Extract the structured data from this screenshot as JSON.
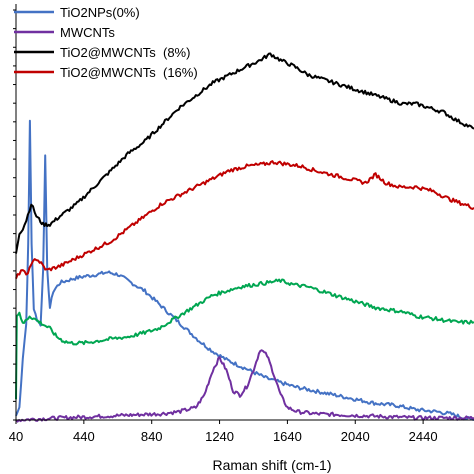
{
  "chart_data": {
    "type": "line",
    "title": "",
    "xlabel": "Raman shift (cm-1)",
    "ylabel": "",
    "xlim": [
      40,
      2740
    ],
    "ylim": [
      0,
      100
    ],
    "x_ticks": [
      40,
      440,
      840,
      1240,
      1640,
      2040,
      2440
    ],
    "y_ticks": [],
    "grid": false,
    "legend_position": "top-left",
    "series": [
      {
        "name": "TiO2NPs(0%)",
        "color": "#4472C4",
        "points": [
          [
            40,
            1
          ],
          [
            60,
            3
          ],
          [
            80,
            15
          ],
          [
            100,
            23
          ],
          [
            112,
            42
          ],
          [
            122,
            72
          ],
          [
            132,
            42
          ],
          [
            145,
            27
          ],
          [
            165,
            24
          ],
          [
            185,
            23
          ],
          [
            200,
            36
          ],
          [
            212,
            64
          ],
          [
            224,
            36
          ],
          [
            240,
            27
          ],
          [
            260,
            31
          ],
          [
            300,
            33
          ],
          [
            380,
            34
          ],
          [
            440,
            34.5
          ],
          [
            520,
            35
          ],
          [
            580,
            35.5
          ],
          [
            640,
            35
          ],
          [
            720,
            33
          ],
          [
            800,
            31
          ],
          [
            880,
            28
          ],
          [
            960,
            25
          ],
          [
            1040,
            22
          ],
          [
            1120,
            19
          ],
          [
            1200,
            16.5
          ],
          [
            1280,
            14.5
          ],
          [
            1360,
            13
          ],
          [
            1440,
            11.5
          ],
          [
            1520,
            10
          ],
          [
            1600,
            9
          ],
          [
            1680,
            8
          ],
          [
            1800,
            7
          ],
          [
            1920,
            6
          ],
          [
            2040,
            5
          ],
          [
            2160,
            4
          ],
          [
            2280,
            3.5
          ],
          [
            2400,
            2.5
          ],
          [
            2520,
            2
          ],
          [
            2600,
            1.5
          ],
          [
            2680,
            0.5
          ],
          [
            2740,
            0
          ]
        ]
      },
      {
        "name": "MWCNTs",
        "color": "#7030A0",
        "points": [
          [
            40,
            0
          ],
          [
            300,
            0.5
          ],
          [
            600,
            1
          ],
          [
            900,
            1.5
          ],
          [
            1000,
            2
          ],
          [
            1100,
            3
          ],
          [
            1150,
            6
          ],
          [
            1200,
            12
          ],
          [
            1240,
            15
          ],
          [
            1280,
            12
          ],
          [
            1320,
            7
          ],
          [
            1360,
            6
          ],
          [
            1400,
            8
          ],
          [
            1440,
            12
          ],
          [
            1480,
            17
          ],
          [
            1520,
            15.5
          ],
          [
            1560,
            11
          ],
          [
            1600,
            6
          ],
          [
            1640,
            3
          ],
          [
            1700,
            2
          ],
          [
            1800,
            1.5
          ],
          [
            2100,
            1
          ],
          [
            2400,
            0.5
          ],
          [
            2740,
            0.5
          ]
        ]
      },
      {
        "name": "TiO2@MWCNTs  (8%)",
        "color": "#000000",
        "points": [
          [
            40,
            40
          ],
          [
            60,
            45
          ],
          [
            80,
            46
          ],
          [
            100,
            48
          ],
          [
            130,
            52
          ],
          [
            160,
            49
          ],
          [
            200,
            47
          ],
          [
            240,
            47
          ],
          [
            300,
            49
          ],
          [
            400,
            52
          ],
          [
            500,
            56
          ],
          [
            600,
            60
          ],
          [
            700,
            64
          ],
          [
            800,
            67
          ],
          [
            900,
            71
          ],
          [
            1000,
            75
          ],
          [
            1100,
            78
          ],
          [
            1200,
            81
          ],
          [
            1300,
            83
          ],
          [
            1400,
            85
          ],
          [
            1480,
            86.5
          ],
          [
            1540,
            88
          ],
          [
            1600,
            86.5
          ],
          [
            1680,
            85
          ],
          [
            1760,
            83
          ],
          [
            1840,
            82
          ],
          [
            1920,
            81
          ],
          [
            2000,
            80
          ],
          [
            2080,
            79
          ],
          [
            2160,
            78
          ],
          [
            2240,
            77
          ],
          [
            2320,
            76
          ],
          [
            2400,
            76
          ],
          [
            2480,
            75
          ],
          [
            2560,
            74
          ],
          [
            2640,
            72
          ],
          [
            2740,
            70
          ]
        ]
      },
      {
        "name": "TiO2@MWCNTs  (16%)",
        "color": "#C00000",
        "points": [
          [
            40,
            34
          ],
          [
            70,
            36
          ],
          [
            100,
            35
          ],
          [
            130,
            37
          ],
          [
            150,
            39
          ],
          [
            180,
            38
          ],
          [
            220,
            36
          ],
          [
            300,
            37
          ],
          [
            400,
            39
          ],
          [
            500,
            41
          ],
          [
            600,
            43
          ],
          [
            700,
            46
          ],
          [
            800,
            49
          ],
          [
            900,
            52
          ],
          [
            1000,
            54
          ],
          [
            1100,
            56
          ],
          [
            1200,
            58
          ],
          [
            1300,
            60
          ],
          [
            1400,
            61
          ],
          [
            1500,
            61.5
          ],
          [
            1560,
            62
          ],
          [
            1640,
            61.5
          ],
          [
            1720,
            61
          ],
          [
            1800,
            60
          ],
          [
            1900,
            59
          ],
          [
            2000,
            58
          ],
          [
            2100,
            57
          ],
          [
            2160,
            59
          ],
          [
            2220,
            57
          ],
          [
            2300,
            56
          ],
          [
            2400,
            56
          ],
          [
            2500,
            55
          ],
          [
            2600,
            53
          ],
          [
            2740,
            51
          ]
        ]
      },
      {
        "name": "",
        "color": "#00A651",
        "points": [
          [
            40,
            5
          ],
          [
            45,
            25
          ],
          [
            60,
            26
          ],
          [
            80,
            23
          ],
          [
            120,
            25
          ],
          [
            160,
            24
          ],
          [
            200,
            23
          ],
          [
            240,
            22
          ],
          [
            280,
            20
          ],
          [
            320,
            19
          ],
          [
            360,
            18.5
          ],
          [
            440,
            18.5
          ],
          [
            520,
            19
          ],
          [
            600,
            19.5
          ],
          [
            700,
            20
          ],
          [
            800,
            21
          ],
          [
            880,
            22
          ],
          [
            960,
            24
          ],
          [
            1040,
            26
          ],
          [
            1120,
            28
          ],
          [
            1200,
            30
          ],
          [
            1280,
            31
          ],
          [
            1360,
            32
          ],
          [
            1440,
            32.5
          ],
          [
            1520,
            33
          ],
          [
            1600,
            33.5
          ],
          [
            1680,
            32.5
          ],
          [
            1760,
            32
          ],
          [
            1840,
            31
          ],
          [
            1920,
            30
          ],
          [
            2000,
            29
          ],
          [
            2080,
            28
          ],
          [
            2160,
            27
          ],
          [
            2240,
            26.5
          ],
          [
            2320,
            26
          ],
          [
            2400,
            25
          ],
          [
            2480,
            24.5
          ],
          [
            2560,
            24
          ],
          [
            2640,
            23.5
          ],
          [
            2740,
            23.5
          ]
        ]
      }
    ]
  }
}
